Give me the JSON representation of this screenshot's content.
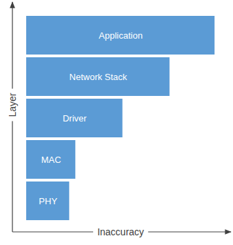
{
  "chart_data": {
    "type": "bar",
    "orientation": "horizontal",
    "categories": [
      "Application",
      "Network Stack",
      "Driver",
      "MAC",
      "PHY"
    ],
    "values": [
      92,
      70,
      47,
      24,
      21
    ],
    "xlabel": "Inaccuracy",
    "ylabel": "Layer",
    "xlim": [
      0,
      100
    ],
    "color": "#5b9bd5",
    "tick_labels": false,
    "data_labels": false
  }
}
